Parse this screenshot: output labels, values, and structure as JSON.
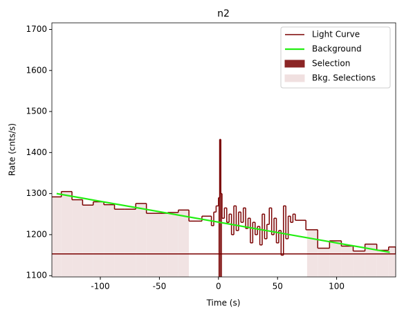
{
  "chart_data": {
    "type": "step",
    "title": "n2",
    "x_label": "Time (s)",
    "y_label": "Rate (cnts/s)",
    "xlim": [
      -141,
      150
    ],
    "xticks": [
      -100,
      -50,
      0,
      50,
      100
    ],
    "ylim": [
      1097,
      1716
    ],
    "yticks": [
      1100,
      1200,
      1300,
      1400,
      1500,
      1600,
      1700
    ],
    "legend": "upper right",
    "series": [
      {
        "name": "Light Curve",
        "color": "#7a0000",
        "bins": [
          -141,
          -133,
          -124,
          -115,
          -106,
          -97,
          -88,
          -79,
          -70,
          -61,
          -52,
          -43,
          -34,
          -25,
          -14,
          -6,
          -4,
          -2,
          0,
          1,
          2,
          3,
          5,
          7,
          9,
          11,
          13,
          15,
          17,
          19,
          21,
          23,
          25,
          27,
          29,
          31,
          33,
          35,
          37,
          39,
          41,
          43,
          45,
          47,
          49,
          51,
          53,
          55,
          57,
          59,
          61,
          63,
          65,
          74,
          84,
          94,
          104,
          114,
          124,
          134,
          144,
          150
        ],
        "values": [
          1292,
          1305,
          1285,
          1272,
          1280,
          1273,
          1262,
          1262,
          1276,
          1252,
          1252,
          1254,
          1260,
          1233,
          1245,
          1222,
          1255,
          1270,
          1290,
          1432,
          1300,
          1240,
          1265,
          1230,
          1250,
          1200,
          1270,
          1210,
          1255,
          1230,
          1265,
          1215,
          1240,
          1180,
          1230,
          1200,
          1220,
          1175,
          1250,
          1190,
          1225,
          1265,
          1200,
          1240,
          1180,
          1210,
          1150,
          1270,
          1190,
          1245,
          1230,
          1250,
          1235,
          1212,
          1167,
          1185,
          1172,
          1160,
          1177,
          1162,
          1170,
          1153
        ]
      },
      {
        "name": "Background",
        "color": "#22ee11",
        "x": [
          -137,
          145
        ],
        "values": [
          1300,
          1157
        ]
      }
    ],
    "selection": {
      "name": "Selection",
      "color": "#8b2525",
      "ranges": [
        [
          0,
          3
        ]
      ]
    },
    "bkg_selections": {
      "name": "Bkg. Selections",
      "color": "#f0e0e0",
      "ranges": [
        [
          -141,
          -25
        ],
        [
          75,
          150
        ]
      ]
    }
  }
}
